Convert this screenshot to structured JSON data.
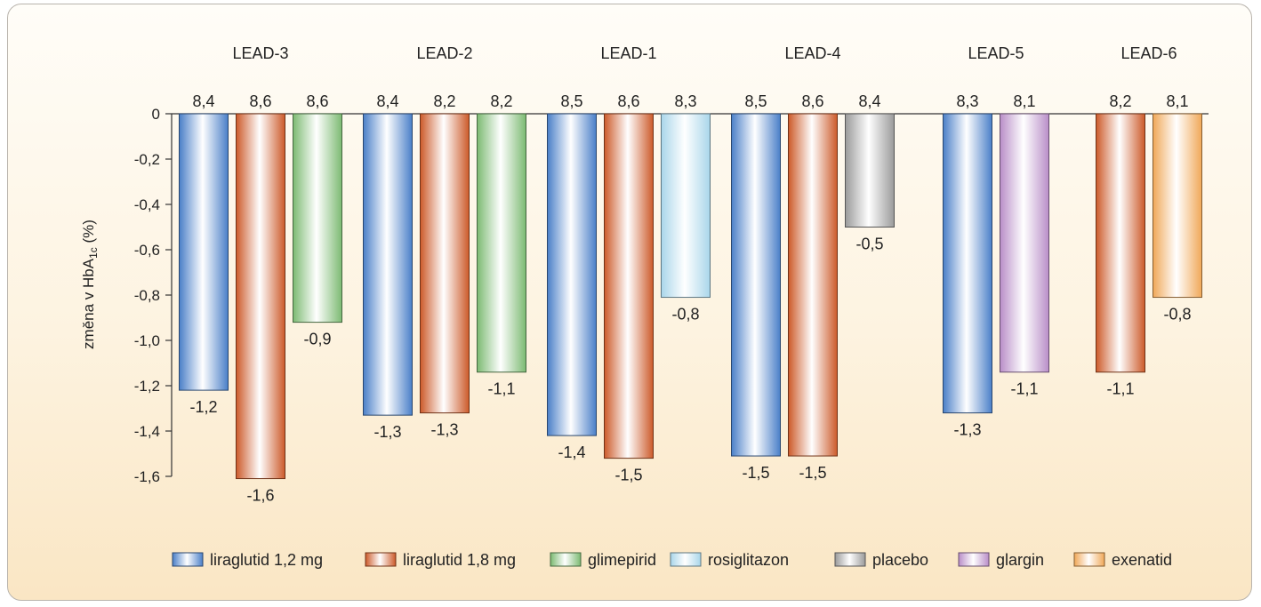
{
  "chart_data": {
    "type": "bar",
    "ylabel": "změna v HbA1c (%)",
    "ylim": [
      -1.6,
      0
    ],
    "yticks": [
      "0",
      "-0,2",
      "-0,4",
      "-0,6",
      "-0,8",
      "-1,0",
      "-1,2",
      "-1,4",
      "-1,6"
    ],
    "series_colors": {
      "liraglutid 1,2 mg": "#4a7fc8",
      "liraglutid 1,8 mg": "#cc5a2a",
      "glimepirid": "#7cba72",
      "rosiglitazon": "#a9d6ea",
      "placebo": "#9a9a9a",
      "glargin": "#b98ec8",
      "exenatid": "#f0a858"
    },
    "legend": [
      "liraglutid 1,2 mg",
      "liraglutid 1,8 mg",
      "glimepirid",
      "rosiglitazon",
      "placebo",
      "glargin",
      "exenatid"
    ],
    "groups": [
      {
        "name": "LEAD-3",
        "bars": [
          {
            "series": "liraglutid 1,2 mg",
            "value": -1.22,
            "label": "-1,2",
            "baseline": "8,4"
          },
          {
            "series": "liraglutid 1,8 mg",
            "value": -1.61,
            "label": "-1,6",
            "baseline": "8,6"
          },
          {
            "series": "glimepirid",
            "value": -0.92,
            "label": "-0,9",
            "baseline": "8,6"
          }
        ]
      },
      {
        "name": "LEAD-2",
        "bars": [
          {
            "series": "liraglutid 1,2 mg",
            "value": -1.33,
            "label": "-1,3",
            "baseline": "8,4"
          },
          {
            "series": "liraglutid 1,8 mg",
            "value": -1.32,
            "label": "-1,3",
            "baseline": "8,2"
          },
          {
            "series": "glimepirid",
            "value": -1.14,
            "label": "-1,1",
            "baseline": "8,2"
          }
        ]
      },
      {
        "name": "LEAD-1",
        "bars": [
          {
            "series": "liraglutid 1,2 mg",
            "value": -1.42,
            "label": "-1,4",
            "baseline": "8,5"
          },
          {
            "series": "liraglutid 1,8 mg",
            "value": -1.52,
            "label": "-1,5",
            "baseline": "8,6"
          },
          {
            "series": "rosiglitazon",
            "value": -0.81,
            "label": "-0,8",
            "baseline": "8,3"
          }
        ]
      },
      {
        "name": "LEAD-4",
        "bars": [
          {
            "series": "liraglutid 1,2 mg",
            "value": -1.51,
            "label": "-1,5",
            "baseline": "8,5"
          },
          {
            "series": "liraglutid 1,8 mg",
            "value": -1.51,
            "label": "-1,5",
            "baseline": "8,6"
          },
          {
            "series": "placebo",
            "value": -0.5,
            "label": "-0,5",
            "baseline": "8,4"
          }
        ]
      },
      {
        "name": "LEAD-5",
        "bars": [
          {
            "series": "liraglutid 1,2 mg",
            "value": -1.32,
            "label": "-1,3",
            "baseline": "8,3"
          },
          {
            "series": "glargin",
            "value": -1.14,
            "label": "-1,1",
            "baseline": "8,1"
          }
        ]
      },
      {
        "name": "LEAD-6",
        "bars": [
          {
            "series": "liraglutid 1,8 mg",
            "value": -1.14,
            "label": "-1,1",
            "baseline": "8,2"
          },
          {
            "series": "exenatid",
            "value": -0.81,
            "label": "-0,8",
            "baseline": "8,1"
          }
        ]
      }
    ]
  }
}
